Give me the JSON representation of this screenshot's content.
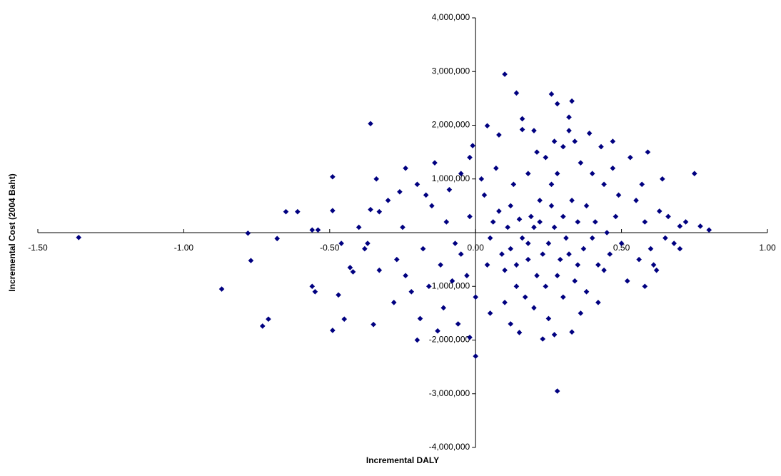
{
  "chart_data": {
    "type": "scatter",
    "x_label": "Incremental DALY",
    "y_label": "Incremental Cost (2004 Baht)",
    "color": "#000080",
    "xlim": [
      -1.5,
      1.0
    ],
    "xticks": [
      {
        "value": -1.5,
        "label": "-1.50"
      },
      {
        "value": -1.0,
        "label": "-1.00"
      },
      {
        "value": -0.5,
        "label": "-0.50"
      },
      {
        "value": 0,
        "label": "0.00"
      },
      {
        "value": 0.5,
        "label": "0.50"
      },
      {
        "value": 1.0,
        "label": "1.00"
      }
    ],
    "ylim": [
      -4000000,
      4000000
    ],
    "yticks": [
      {
        "value": 4000000,
        "label": "4,000,000"
      },
      {
        "value": 3000000,
        "label": "3,000,000"
      },
      {
        "value": 2000000,
        "label": "2,000,000"
      },
      {
        "value": 1000000,
        "label": "1,000,000"
      },
      {
        "value": -1000000,
        "label": "-1,000,000"
      },
      {
        "value": -2000000,
        "label": "-2,000,000"
      },
      {
        "value": -3000000,
        "label": "-3,000,000"
      },
      {
        "value": -4000000,
        "label": "-4,000,000"
      }
    ],
    "x": [
      -1.36,
      -0.87,
      -0.78,
      -0.77,
      -0.73,
      -0.71,
      -0.68,
      -0.65,
      -0.61,
      -0.56,
      -0.54,
      -0.56,
      -0.55,
      -0.49,
      -0.49,
      -0.49,
      -0.46,
      -0.47,
      -0.45,
      -0.43,
      -0.42,
      -0.36,
      -0.35,
      -0.36,
      -0.33,
      -0.37,
      -0.34,
      -0.26,
      0.1,
      0.14,
      0.28,
      0.0,
      0.26,
      0.28,
      0.33,
      0.32,
      0.16,
      0.16,
      -0.01,
      0.04,
      0.08,
      0.75,
      0.8,
      0.77,
      0.7,
      0.23,
      0.33,
      0.15,
      -0.13,
      -0.2,
      -0.02,
      0.2,
      0.25,
      0.3,
      0.18,
      0.35,
      0.22,
      0.28,
      0.4,
      0.15,
      0.32,
      0.26,
      0.12,
      0.38,
      0.45,
      0.05,
      0.08,
      0.1,
      0.42,
      0.48,
      0.5,
      0.55,
      0.6,
      0.58,
      0.65,
      0.63,
      0.52,
      0.47,
      0.36,
      0.3,
      0.24,
      0.18,
      0.13,
      0.03,
      -0.02,
      -0.05,
      -0.08,
      -0.1,
      -0.12,
      -0.15,
      -0.18,
      -0.2,
      -0.22,
      -0.25,
      -0.27,
      -0.3,
      -0.05,
      0.0,
      0.05,
      0.1,
      0.14,
      0.2,
      0.25,
      0.3,
      0.34,
      0.38,
      0.44,
      0.56,
      0.62,
      0.68,
      0.66,
      0.57,
      0.53,
      0.43,
      0.39,
      0.34,
      0.27,
      0.21,
      0.07,
      0.02,
      -0.09,
      -0.14,
      -0.17,
      0.16,
      0.19,
      0.23,
      0.27,
      0.31,
      0.33,
      0.37,
      0.41,
      0.21,
      0.17,
      0.12,
      0.09,
      0.06,
      0.29,
      0.26,
      0.24,
      0.35,
      0.46,
      0.49,
      0.44,
      0.4,
      0.28,
      0.22,
      0.18,
      0.14,
      0.11,
      0.04,
      -0.03,
      -0.07,
      -0.11,
      -0.16,
      -0.19,
      -0.24,
      -0.28,
      -0.06,
      0.12,
      0.27,
      0.36,
      0.42,
      0.58,
      0.61,
      0.7,
      0.72,
      0.64,
      0.59,
      0.47,
      0.32,
      0.2,
      -0.02,
      -0.24,
      -0.33,
      -0.38,
      -0.4
    ],
    "values": [
      -90000,
      -1050000,
      -10000,
      -520000,
      -1740000,
      -1610000,
      -110000,
      390000,
      390000,
      50000,
      50000,
      -1000000,
      -1100000,
      1040000,
      -1820000,
      410000,
      -200000,
      -1160000,
      -1610000,
      -650000,
      -730000,
      2030000,
      -1710000,
      430000,
      390000,
      -200000,
      1000000,
      760000,
      2950000,
      2600000,
      -2950000,
      -2300000,
      2580000,
      2400000,
      2450000,
      2150000,
      2120000,
      1920000,
      1620000,
      1990000,
      1820000,
      1100000,
      50000,
      120000,
      120000,
      -1980000,
      -1850000,
      -1860000,
      -1830000,
      -2000000,
      -1950000,
      100000,
      -200000,
      300000,
      -500000,
      200000,
      600000,
      -800000,
      -100000,
      250000,
      -400000,
      900000,
      -300000,
      500000,
      0,
      -100000,
      400000,
      -700000,
      -600000,
      300000,
      -200000,
      600000,
      -300000,
      200000,
      -100000,
      400000,
      -900000,
      1200000,
      1300000,
      1600000,
      1400000,
      1100000,
      900000,
      700000,
      300000,
      -400000,
      -900000,
      200000,
      -600000,
      500000,
      -300000,
      900000,
      -1100000,
      100000,
      -500000,
      600000,
      1100000,
      -1200000,
      -1500000,
      -1300000,
      -1000000,
      -1400000,
      -1600000,
      -1200000,
      -900000,
      -1100000,
      -700000,
      -500000,
      -700000,
      -200000,
      300000,
      900000,
      1400000,
      1600000,
      1850000,
      1700000,
      1700000,
      1500000,
      1200000,
      1000000,
      800000,
      1300000,
      700000,
      -100000,
      300000,
      -400000,
      100000,
      -100000,
      600000,
      -300000,
      200000,
      -800000,
      -1200000,
      500000,
      -400000,
      200000,
      -500000,
      500000,
      -1000000,
      -600000,
      -400000,
      700000,
      900000,
      1100000,
      1100000,
      200000,
      -200000,
      -600000,
      100000,
      -600000,
      -800000,
      -200000,
      -1400000,
      -1000000,
      -1600000,
      -800000,
      -1300000,
      -1700000,
      -1700000,
      -1900000,
      -1500000,
      -1300000,
      -1000000,
      -600000,
      -300000,
      200000,
      1000000,
      1500000,
      1700000,
      1900000,
      1900000,
      1400000,
      1200000,
      -700000,
      -300000,
      100000
    ]
  }
}
